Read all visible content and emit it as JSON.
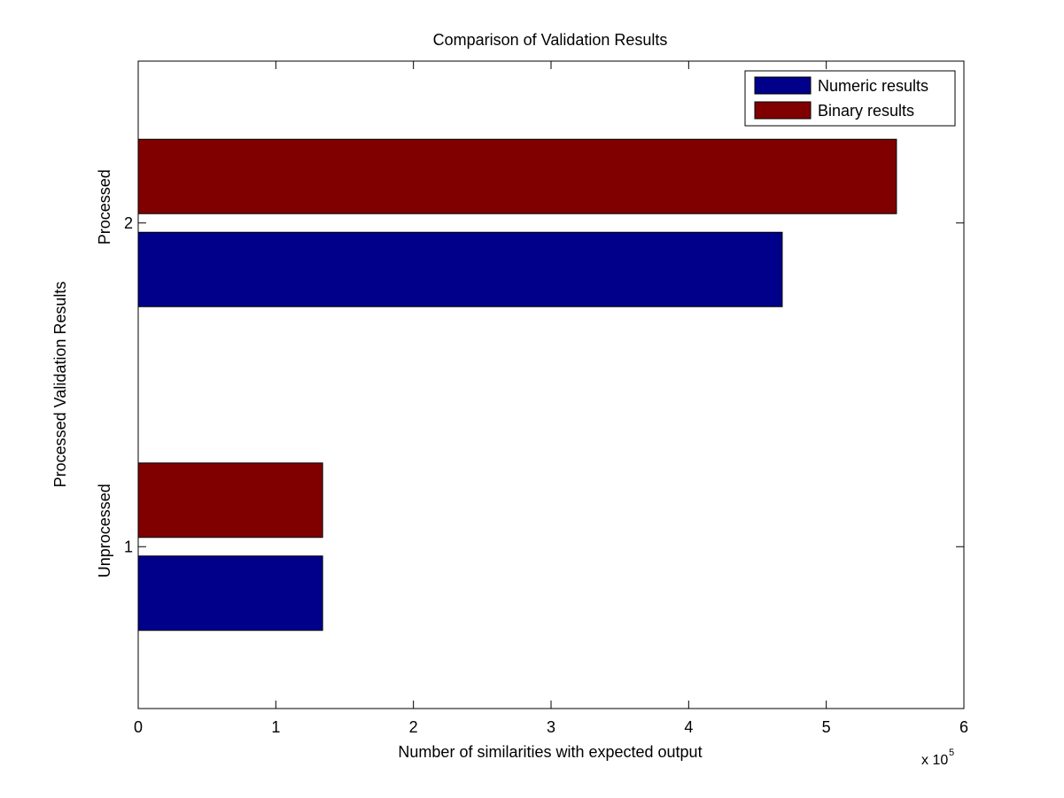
{
  "chart_data": {
    "type": "bar",
    "orientation": "horizontal",
    "title": "Comparison of Validation Results",
    "xlabel": "Number of similarities with expected output",
    "ylabel": "Processed Validation Results",
    "xlim": [
      0,
      600000
    ],
    "x_ticks": [
      "0",
      "1",
      "2",
      "3",
      "4",
      "5",
      "6"
    ],
    "x_tick_values": [
      0,
      100000,
      200000,
      300000,
      400000,
      500000,
      600000
    ],
    "x_multiplier_base": "x 10",
    "x_multiplier_exp": "5",
    "ylim": [
      0.5,
      2.5
    ],
    "y_ticks": [
      "1",
      "2"
    ],
    "categories": [
      "Unprocessed",
      "Processed"
    ],
    "series": [
      {
        "name": "Numeric results",
        "color": "#00008B",
        "values": [
          134000,
          468000
        ]
      },
      {
        "name": "Binary results",
        "color": "#800000",
        "values": [
          134000,
          551000
        ]
      }
    ],
    "legend_position": "top-right",
    "grid": false
  }
}
